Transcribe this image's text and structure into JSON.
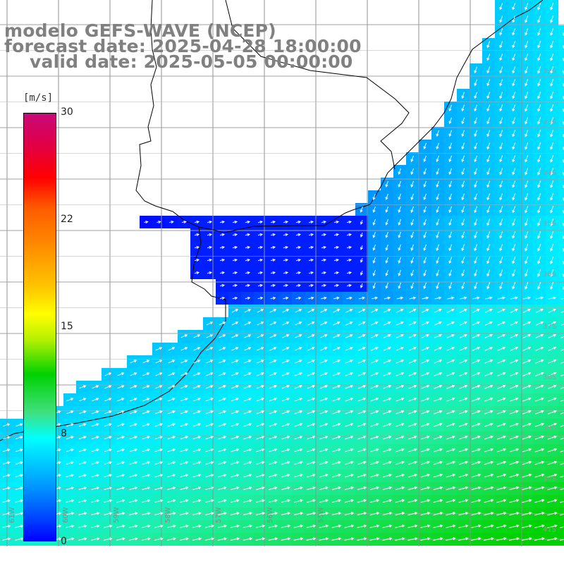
{
  "title": {
    "line1": "modelo GEFS-WAVE (NCEP)",
    "line2": "forecast date: 2025-04-28 18:00:00",
    "line3": "valid date: 2025-05-05 00:00:00"
  },
  "colorbar": {
    "units": "[m/s]",
    "ticks": [
      {
        "label": "30",
        "value": 30
      },
      {
        "label": "22",
        "value": 22
      },
      {
        "label": "15",
        "value": 15
      },
      {
        "label": "8",
        "value": 8
      },
      {
        "label": "0",
        "value": 0
      }
    ],
    "range": [
      0,
      30
    ]
  },
  "lon_labels": [
    "61W",
    "60W",
    "59W",
    "58W",
    "57W",
    "56W",
    "55W"
  ],
  "lat_labels": [
    "32S",
    "33S",
    "34S",
    "35S",
    "36S",
    "37S",
    "38S",
    "39S",
    "40S",
    "41S"
  ],
  "colors": {
    "grid": "#909090",
    "coast": "#000000",
    "arrow": "#ffffff",
    "title": "#808080"
  }
}
